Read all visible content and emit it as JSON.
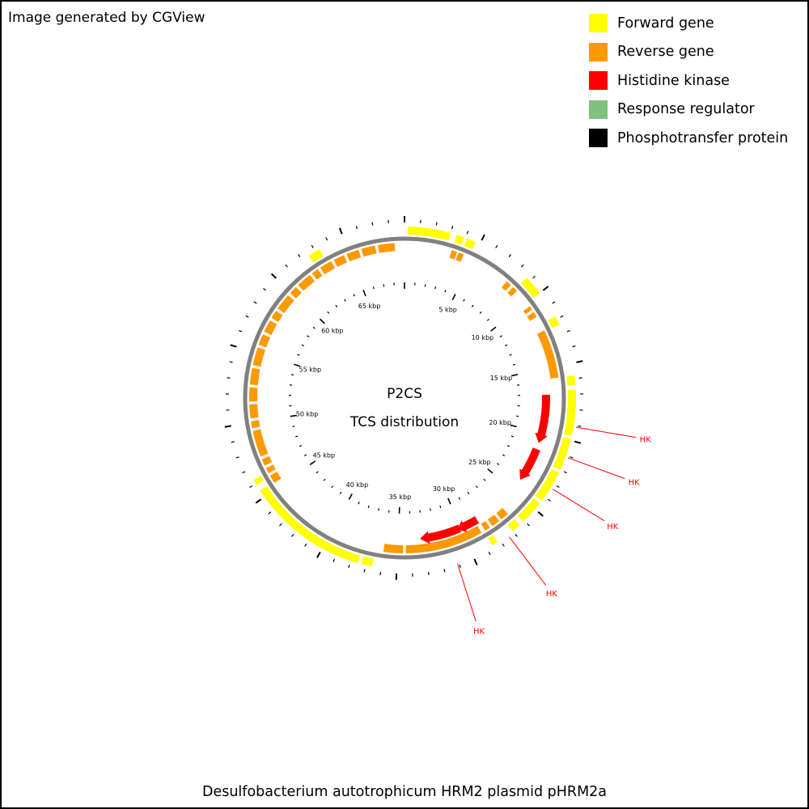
{
  "header": {
    "credit": "Image generated by CGView"
  },
  "legend": {
    "items": [
      {
        "label": "Forward gene",
        "color": "#ffff00"
      },
      {
        "label": "Reverse gene",
        "color": "#ff9900"
      },
      {
        "label": "Histidine kinase",
        "color": "#ff0000"
      },
      {
        "label": "Response regulator",
        "color": "#80c080"
      },
      {
        "label": "Phosphotransfer protein",
        "color": "#000000"
      }
    ]
  },
  "map": {
    "title_line1": "P2CS",
    "title_line2": "TCS distribution",
    "caption": "Desulfobacterium autotrophicum HRM2 plasmid pHRM2a",
    "sequence_length_kbp": 69,
    "tick_labels": [
      {
        "text": "5 kbp",
        "kbp": 5
      },
      {
        "text": "10 kbp",
        "kbp": 10
      },
      {
        "text": "15 kbp",
        "kbp": 15
      },
      {
        "text": "20 kbp",
        "kbp": 20
      },
      {
        "text": "25 kbp",
        "kbp": 25
      },
      {
        "text": "30 kbp",
        "kbp": 30
      },
      {
        "text": "35 kbp",
        "kbp": 35
      },
      {
        "text": "40 kbp",
        "kbp": 40
      },
      {
        "text": "45 kbp",
        "kbp": 45
      },
      {
        "text": "50 kbp",
        "kbp": 50
      },
      {
        "text": "55 kbp",
        "kbp": 55
      },
      {
        "text": "60 kbp",
        "kbp": 60
      },
      {
        "text": "65 kbp",
        "kbp": 65
      }
    ],
    "backbone_color": "#808080",
    "forward_genes_kbp": [
      [
        0.2,
        3.0
      ],
      [
        3.4,
        3.9
      ],
      [
        4.1,
        4.7
      ],
      [
        8.7,
        10.0
      ],
      [
        11.8,
        12.4
      ],
      [
        15.8,
        16.4
      ],
      [
        16.7,
        19.7
      ],
      [
        19.9,
        22.0
      ],
      [
        22.2,
        24.3
      ],
      [
        24.5,
        26.1
      ],
      [
        26.4,
        27.0
      ],
      [
        28.2,
        28.6
      ],
      [
        36.6,
        37.3
      ],
      [
        37.5,
        45.5
      ],
      [
        45.9,
        46.3
      ],
      [
        62.5,
        63.3
      ]
    ],
    "reverse_genes_kbp": [
      [
        3.4,
        3.8
      ],
      [
        3.9,
        4.3
      ],
      [
        7.9,
        8.3
      ],
      [
        8.5,
        8.9
      ],
      [
        10.3,
        10.6
      ],
      [
        10.8,
        11.2
      ],
      [
        12.3,
        15.8
      ],
      [
        26.5,
        27.1
      ],
      [
        27.3,
        27.9
      ],
      [
        28.1,
        28.5
      ],
      [
        28.8,
        34.4
      ],
      [
        34.6,
        36.0
      ],
      [
        45.4,
        46.0
      ],
      [
        46.2,
        46.6
      ],
      [
        46.8,
        47.3
      ],
      [
        47.5,
        49.4
      ],
      [
        49.6,
        50.1
      ],
      [
        50.3,
        51.3
      ],
      [
        51.5,
        52.5
      ],
      [
        52.7,
        53.9
      ],
      [
        54.1,
        55.4
      ],
      [
        55.6,
        56.4
      ],
      [
        56.6,
        57.5
      ],
      [
        57.7,
        58.3
      ],
      [
        58.5,
        59.7
      ],
      [
        59.9,
        60.5
      ],
      [
        60.7,
        61.8
      ],
      [
        62.0,
        62.5
      ],
      [
        62.7,
        63.6
      ],
      [
        63.8,
        64.6
      ],
      [
        64.8,
        65.7
      ],
      [
        65.9,
        66.9
      ],
      [
        67.1,
        68.3
      ]
    ],
    "histidine_kinases": [
      {
        "start_kbp": 17.0,
        "end_kbp": 20.8,
        "strand": "forward",
        "label": "HK"
      },
      {
        "start_kbp": 21.3,
        "end_kbp": 24.0,
        "strand": "forward",
        "label": "HK"
      },
      {
        "start_kbp": 28.6,
        "end_kbp": 30.3,
        "strand": "forward",
        "label": "HK"
      },
      {
        "start_kbp": 30.1,
        "end_kbp": 33.3,
        "strand": "forward",
        "label": "HK"
      }
    ],
    "hk_label_color": "#ff0000",
    "hk_callouts": [
      {
        "label": "HK",
        "kbp": 19.1
      },
      {
        "label": "HK",
        "kbp": 21.1
      },
      {
        "label": "HK",
        "kbp": 23.3
      },
      {
        "label": "HK",
        "kbp": 27.4
      },
      {
        "label": "HK",
        "kbp": 31.1
      }
    ]
  }
}
